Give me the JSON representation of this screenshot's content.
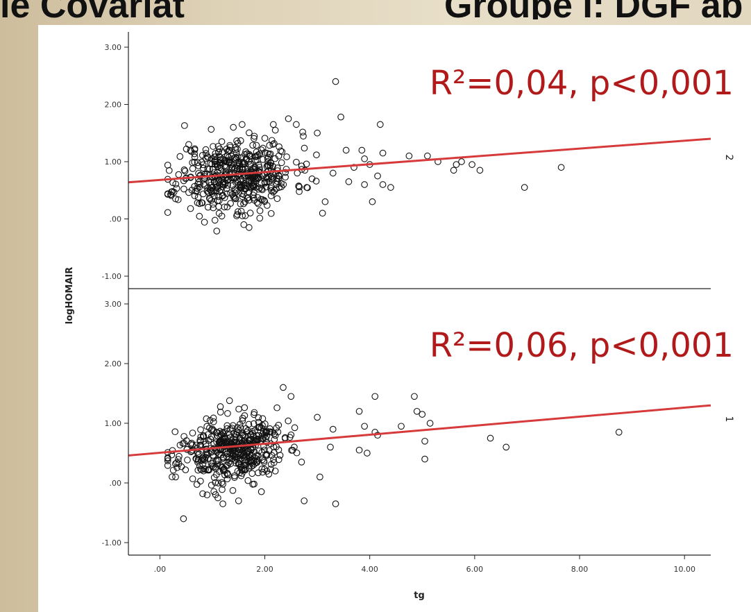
{
  "slide": {
    "heading_left": "ie Covariat",
    "heading_right": "Groupe I: DGF ab"
  },
  "chart_data": [
    {
      "type": "scatter",
      "panel": "2",
      "annotation": "R²=0,04, p<0,001",
      "xlabel": "tg",
      "ylabel": "logHOMAIR",
      "xlim": [
        -0.6,
        10.5
      ],
      "ylim": [
        -1.0,
        3.0
      ],
      "yticks": [
        "3.00",
        "2.00",
        "1.00",
        ".00",
        "-1.00"
      ],
      "fit_line": {
        "x": [
          -0.6,
          10.5
        ],
        "y": [
          0.64,
          1.4
        ],
        "color": "#d63a3a"
      },
      "cluster": {
        "n": 500,
        "x_mean": 1.45,
        "x_sd": 0.55,
        "y_mean": 0.78,
        "y_sd": 0.32,
        "seed": 11
      },
      "points": [
        [
          3.35,
          2.4
        ],
        [
          3.45,
          1.78
        ],
        [
          4.2,
          1.65
        ],
        [
          2.45,
          1.75
        ],
        [
          2.6,
          1.65
        ],
        [
          3.0,
          1.5
        ],
        [
          3.55,
          1.2
        ],
        [
          3.85,
          1.2
        ],
        [
          4.25,
          1.15
        ],
        [
          3.9,
          1.05
        ],
        [
          4.0,
          0.95
        ],
        [
          4.15,
          0.75
        ],
        [
          4.25,
          0.6
        ],
        [
          3.9,
          0.6
        ],
        [
          4.05,
          0.3
        ],
        [
          3.15,
          0.3
        ],
        [
          3.1,
          0.1
        ],
        [
          2.8,
          0.55
        ],
        [
          4.75,
          1.1
        ],
        [
          5.1,
          1.1
        ],
        [
          5.3,
          1.0
        ],
        [
          5.65,
          0.95
        ],
        [
          5.75,
          1.0
        ],
        [
          5.95,
          0.95
        ],
        [
          6.1,
          0.85
        ],
        [
          5.6,
          0.85
        ],
        [
          6.95,
          0.55
        ],
        [
          7.65,
          0.9
        ],
        [
          4.4,
          0.55
        ],
        [
          3.6,
          0.65
        ],
        [
          3.3,
          0.8
        ],
        [
          2.9,
          0.7
        ],
        [
          3.7,
          0.9
        ],
        [
          0.3,
          0.35
        ],
        [
          0.55,
          1.3
        ],
        [
          1.4,
          1.6
        ],
        [
          2.2,
          1.55
        ],
        [
          1.7,
          -0.15
        ],
        [
          1.6,
          -0.1
        ]
      ]
    },
    {
      "type": "scatter",
      "panel": "1",
      "annotation": "R²=0,06, p<0,001",
      "xlabel": "tg",
      "ylabel": "logHOMAIR",
      "xlim": [
        -0.6,
        10.5
      ],
      "ylim": [
        -1.0,
        3.0
      ],
      "yticks": [
        "3.00",
        "2.00",
        "1.00",
        ".00",
        "-1.00"
      ],
      "xticks": [
        ".00",
        "2.00",
        "4.00",
        "6.00",
        "8.00",
        "10.00"
      ],
      "xtick_values": [
        0,
        2,
        4,
        6,
        8,
        10
      ],
      "fit_line": {
        "x": [
          -0.6,
          10.5
        ],
        "y": [
          0.46,
          1.3
        ],
        "color": "#d63a3a"
      },
      "cluster": {
        "n": 460,
        "x_mean": 1.35,
        "x_sd": 0.5,
        "y_mean": 0.55,
        "y_sd": 0.27,
        "seed": 23
      },
      "points": [
        [
          2.35,
          1.6
        ],
        [
          2.5,
          1.45
        ],
        [
          4.1,
          1.45
        ],
        [
          4.85,
          1.45
        ],
        [
          3.8,
          1.2
        ],
        [
          4.9,
          1.2
        ],
        [
          5.0,
          1.15
        ],
        [
          5.15,
          1.0
        ],
        [
          4.6,
          0.95
        ],
        [
          4.1,
          0.85
        ],
        [
          4.15,
          0.8
        ],
        [
          3.3,
          0.9
        ],
        [
          3.0,
          1.1
        ],
        [
          3.9,
          0.95
        ],
        [
          5.05,
          0.7
        ],
        [
          5.05,
          0.4
        ],
        [
          3.8,
          0.55
        ],
        [
          3.95,
          0.5
        ],
        [
          2.7,
          0.35
        ],
        [
          3.05,
          0.1
        ],
        [
          2.75,
          -0.3
        ],
        [
          3.35,
          -0.35
        ],
        [
          0.3,
          0.1
        ],
        [
          0.45,
          -0.6
        ],
        [
          6.3,
          0.75
        ],
        [
          6.6,
          0.6
        ],
        [
          8.75,
          0.85
        ],
        [
          1.5,
          -0.3
        ],
        [
          1.2,
          -0.35
        ],
        [
          0.9,
          -0.2
        ],
        [
          2.2,
          0.2
        ],
        [
          3.25,
          0.6
        ]
      ]
    }
  ]
}
